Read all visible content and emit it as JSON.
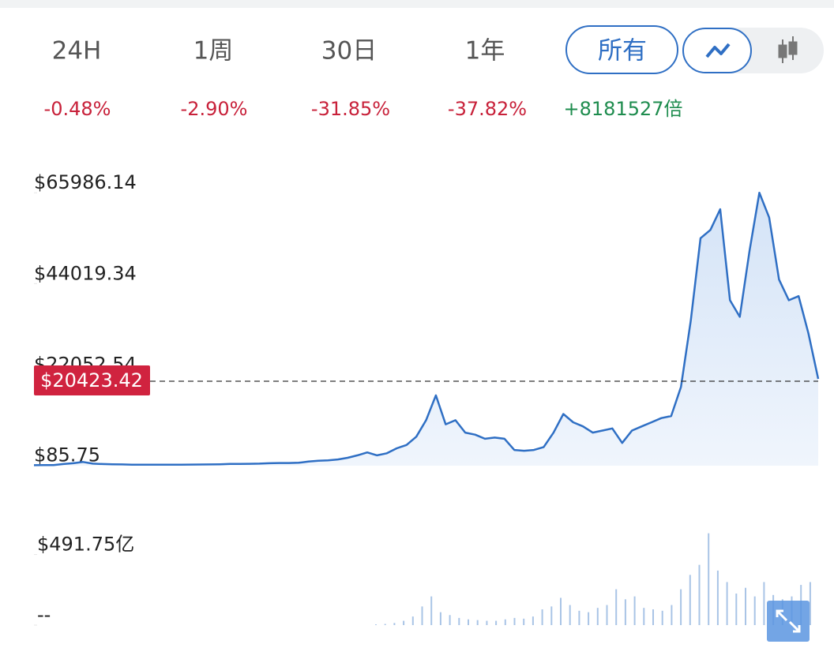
{
  "tabs": [
    "24H",
    "1周",
    "30日",
    "1年",
    "所有"
  ],
  "changes": [
    {
      "text": "-0.48%",
      "trend": "down"
    },
    {
      "text": "-2.90%",
      "trend": "down"
    },
    {
      "text": "-31.85%",
      "trend": "down"
    },
    {
      "text": "-37.82%",
      "trend": "down"
    },
    {
      "text": "+8181527倍",
      "trend": "up"
    }
  ],
  "chart_data": [
    {
      "type": "line",
      "series": [
        {
          "color": "#2f6fc4",
          "values": [
            120,
            130,
            150,
            400,
            600,
            900,
            500,
            400,
            350,
            300,
            250,
            240,
            230,
            230,
            240,
            250,
            260,
            280,
            300,
            350,
            420,
            430,
            450,
            500,
            600,
            650,
            650,
            700,
            1000,
            1200,
            1300,
            1500,
            1900,
            2500,
            3200,
            2500,
            3000,
            4200,
            5000,
            7000,
            11000,
            17000,
            10000,
            11000,
            8000,
            7500,
            6500,
            6800,
            6500,
            3800,
            3600,
            3800,
            4500,
            8000,
            12500,
            10500,
            9500,
            8000,
            8500,
            9000,
            5500,
            8500,
            9500,
            10500,
            11500,
            12000,
            19000,
            35000,
            55000,
            57000,
            62000,
            40000,
            36000,
            52000,
            66000,
            60000,
            45000,
            40000,
            41000,
            32000,
            21000
          ]
        }
      ],
      "ylim": [
        0,
        75000
      ],
      "yticks": [
        {
          "value": 85.75,
          "label": "$85.75"
        },
        {
          "value": 22052.54,
          "label": "$22052.54"
        },
        {
          "value": 44019.34,
          "label": "$44019.34"
        },
        {
          "value": 65986.14,
          "label": "$65986.14"
        }
      ],
      "current": {
        "value": 20423.42,
        "label": "$20423.42"
      }
    },
    {
      "type": "bar",
      "color": "#a9c4e6",
      "values": [
        5,
        8,
        15,
        30,
        60,
        130,
        200,
        90,
        70,
        50,
        40,
        35,
        30,
        30,
        40,
        50,
        45,
        60,
        110,
        130,
        190,
        140,
        100,
        90,
        120,
        140,
        250,
        180,
        200,
        120,
        110,
        100,
        140,
        250,
        350,
        420,
        640,
        380,
        300,
        220,
        260,
        200,
        300,
        210,
        180,
        200,
        280,
        300
      ],
      "ylim": [
        0,
        660
      ],
      "yticks": [
        {
          "value": 0,
          "label": "--"
        },
        {
          "value": 491.75,
          "label": "$491.75亿"
        }
      ]
    }
  ]
}
